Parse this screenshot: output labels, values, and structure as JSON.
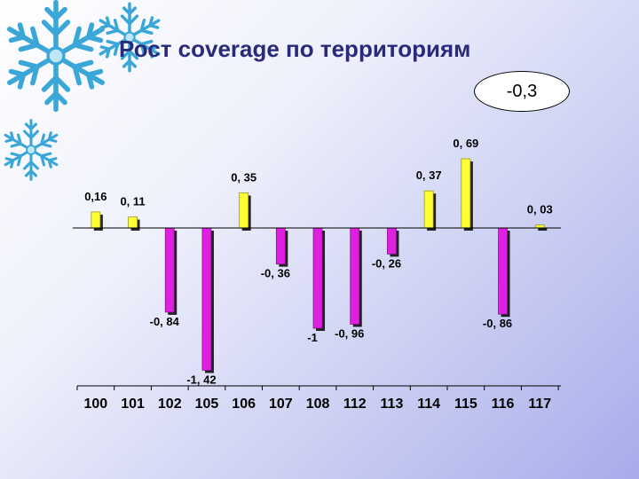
{
  "title": "Рост coverage по территориям",
  "badge_value": "-0,3",
  "colors": {
    "positive": "#ffff33",
    "negative": "#e020e0",
    "title": "#2a2a7a",
    "snowflake": "#3aa7d8"
  },
  "decoration": [
    "snowflake-icon",
    "snowflake-icon",
    "snowflake-icon"
  ],
  "chart_data": {
    "type": "bar",
    "title": "Рост coverage по территориям",
    "categories": [
      "100",
      "101",
      "102",
      "105",
      "106",
      "107",
      "108",
      "112",
      "113",
      "114",
      "115",
      "116",
      "117"
    ],
    "values": [
      0.16,
      0.11,
      -0.84,
      -1.42,
      0.35,
      -0.36,
      -1,
      -0.96,
      -0.26,
      0.37,
      0.69,
      -0.86,
      0.03
    ],
    "labels": [
      "0,16",
      "0, 11",
      "-0, 84",
      "-1, 42",
      "0, 35",
      "-0, 36",
      "-1",
      "-0, 96",
      "-0, 26",
      "0, 37",
      "0, 69",
      "-0, 86",
      "0, 03"
    ],
    "xlabel": "",
    "ylabel": "",
    "grid": false,
    "legend": "none"
  }
}
